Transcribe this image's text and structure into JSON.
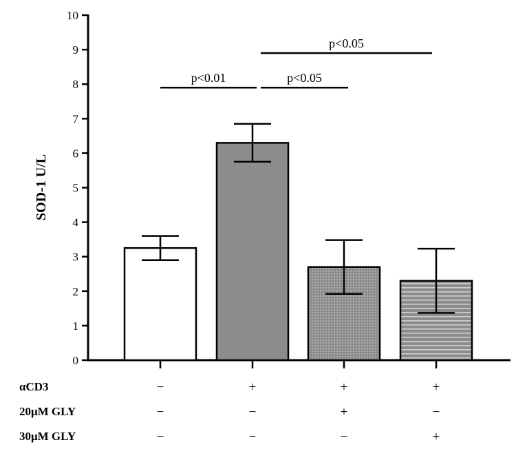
{
  "chart_data": {
    "type": "bar",
    "ylabel": "SOD-1 U/L",
    "xlabel": "",
    "title": "",
    "ylim": [
      0,
      10
    ],
    "yticks": [
      0,
      1,
      2,
      3,
      4,
      5,
      6,
      7,
      8,
      9,
      10
    ],
    "grid": false,
    "bars": [
      {
        "value": 3.25,
        "error": 0.35,
        "fill": "#ffffff",
        "pattern": "none"
      },
      {
        "value": 6.3,
        "error": 0.55,
        "fill": "#8c8c8c",
        "pattern": "none"
      },
      {
        "value": 2.7,
        "error": 0.78,
        "fill": "#8c8c8c",
        "pattern": "dots"
      },
      {
        "value": 2.3,
        "error": 0.93,
        "fill": "#8c8c8c",
        "pattern": "horizontal-lines"
      }
    ],
    "conditions": [
      {
        "label": "αCD3",
        "values": [
          "−",
          "+",
          "+",
          "+"
        ]
      },
      {
        "label": "20μM GLY",
        "values": [
          "−",
          "−",
          "+",
          "−"
        ]
      },
      {
        "label": "30μM GLY",
        "values": [
          "−",
          "−",
          "−",
          "+"
        ]
      }
    ],
    "significance": [
      {
        "from": 0,
        "to": 1,
        "label": "p<0.01",
        "y": 7.9
      },
      {
        "from": 1,
        "to": 2,
        "label": "p<0.05",
        "y": 7.9
      },
      {
        "from": 1,
        "to": 3,
        "label": "p<0.05",
        "y": 8.9
      }
    ]
  }
}
